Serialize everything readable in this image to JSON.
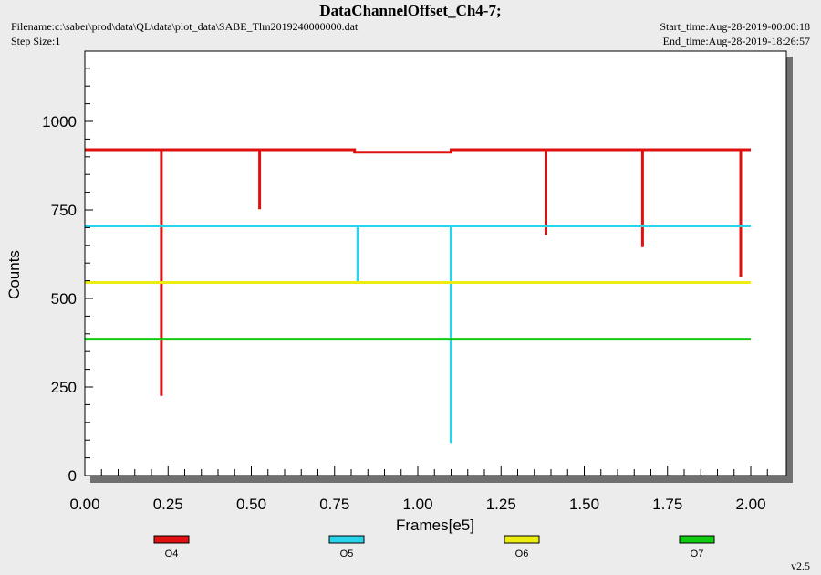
{
  "header": {
    "title": "DataChannelOffset_Ch4-7;",
    "filename": "Filename:c:\\saber\\prod\\data\\QL\\data\\plot_data\\SABE_Tlm2019240000000.dat",
    "step_size": "Step Size:1",
    "start_time": "Start_time:Aug-28-2019-00:00:18",
    "end_time": "End_time:Aug-28-2019-18:26:57"
  },
  "footer": {
    "version": "v2.5"
  },
  "chart_data": {
    "type": "line",
    "xlabel": "Frames[e5]",
    "ylabel": "Counts",
    "xlim": [
      0,
      2.1
    ],
    "ylim": [
      0,
      1180
    ],
    "x_ticks": [
      "0.00",
      "0.25",
      "0.50",
      "0.75",
      "1.00",
      "1.25",
      "1.50",
      "1.75",
      "2.00"
    ],
    "y_ticks": [
      "0",
      "250",
      "500",
      "750",
      "1000"
    ],
    "grid": false,
    "legend_position": "bottom",
    "series": [
      {
        "name": "O4",
        "color": "#e01010",
        "points": [
          [
            0,
            920
          ],
          [
            0.23,
            920
          ],
          [
            0.23,
            225
          ],
          [
            0.23,
            920
          ],
          [
            0.525,
            920
          ],
          [
            0.525,
            752
          ],
          [
            0.525,
            920
          ],
          [
            0.81,
            920
          ],
          [
            0.81,
            913
          ],
          [
            1.1,
            913
          ],
          [
            1.1,
            920
          ],
          [
            1.385,
            920
          ],
          [
            1.385,
            680
          ],
          [
            1.385,
            920
          ],
          [
            1.675,
            920
          ],
          [
            1.675,
            645
          ],
          [
            1.675,
            920
          ],
          [
            1.97,
            920
          ],
          [
            1.97,
            560
          ],
          [
            1.97,
            920
          ],
          [
            2.0,
            920
          ]
        ]
      },
      {
        "name": "O5",
        "color": "#28d4ec",
        "points": [
          [
            0,
            705
          ],
          [
            0.82,
            705
          ],
          [
            0.82,
            548
          ],
          [
            0.82,
            705
          ],
          [
            1.1,
            705
          ],
          [
            1.1,
            92
          ],
          [
            1.1,
            705
          ],
          [
            2.0,
            705
          ]
        ]
      },
      {
        "name": "O6",
        "color": "#ecec10",
        "points": [
          [
            0,
            545
          ],
          [
            2.0,
            545
          ]
        ]
      },
      {
        "name": "O7",
        "color": "#10cc10",
        "points": [
          [
            0,
            385
          ],
          [
            2.0,
            385
          ]
        ]
      }
    ]
  }
}
